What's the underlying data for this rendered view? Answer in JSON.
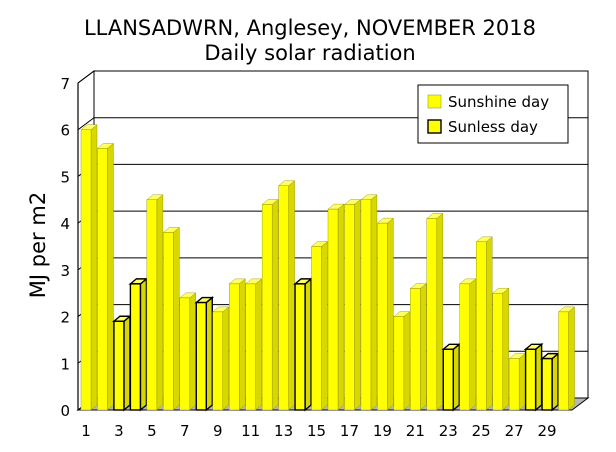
{
  "chart_data": {
    "type": "bar",
    "title": "LLANSADWRN, Anglesey, NOVEMBER 2018",
    "subtitle": "Daily solar radiation",
    "xlabel": "",
    "ylabel": "MJ per m2",
    "ylim": [
      0,
      7
    ],
    "yticks": [
      "0",
      "1",
      "2",
      "3",
      "4",
      "5",
      "6",
      "7"
    ],
    "xtick_labels": [
      "1",
      "3",
      "5",
      "7",
      "9",
      "11",
      "13",
      "15",
      "17",
      "19",
      "21",
      "23",
      "25",
      "27",
      "29"
    ],
    "grid": true,
    "legend_position": "top-right",
    "categories": [
      1,
      2,
      3,
      4,
      5,
      6,
      7,
      8,
      9,
      10,
      11,
      12,
      13,
      14,
      15,
      16,
      17,
      18,
      19,
      20,
      21,
      22,
      23,
      24,
      25,
      26,
      27,
      28,
      29,
      30
    ],
    "values": [
      6.0,
      5.6,
      1.9,
      2.7,
      4.5,
      3.8,
      2.4,
      2.3,
      2.1,
      2.7,
      2.7,
      4.4,
      4.8,
      2.7,
      3.5,
      4.3,
      4.4,
      4.5,
      4.0,
      2.0,
      2.6,
      4.1,
      1.3,
      2.7,
      3.6,
      2.5,
      1.1,
      1.3,
      1.1,
      2.1
    ],
    "day_type": [
      "sunshine",
      "sunshine",
      "sunless",
      "sunless",
      "sunshine",
      "sunshine",
      "sunshine",
      "sunless",
      "sunshine",
      "sunshine",
      "sunshine",
      "sunshine",
      "sunshine",
      "sunless",
      "sunshine",
      "sunshine",
      "sunshine",
      "sunshine",
      "sunshine",
      "sunshine",
      "sunshine",
      "sunshine",
      "sunless",
      "sunshine",
      "sunshine",
      "sunshine",
      "sunshine",
      "sunless",
      "sunless",
      "sunshine"
    ],
    "series": [
      {
        "name": "Sunshine day",
        "key": "sunshine"
      },
      {
        "name": "Sunless day",
        "key": "sunless"
      }
    ],
    "colors": {
      "bar_front": "#ffff00",
      "bar_side": "#d8d800",
      "bar_top": "#ffff66",
      "sunless_outline": "#000000",
      "wall": "#ffffff",
      "floor": "#b8b8b8",
      "grid": "#000000"
    }
  }
}
